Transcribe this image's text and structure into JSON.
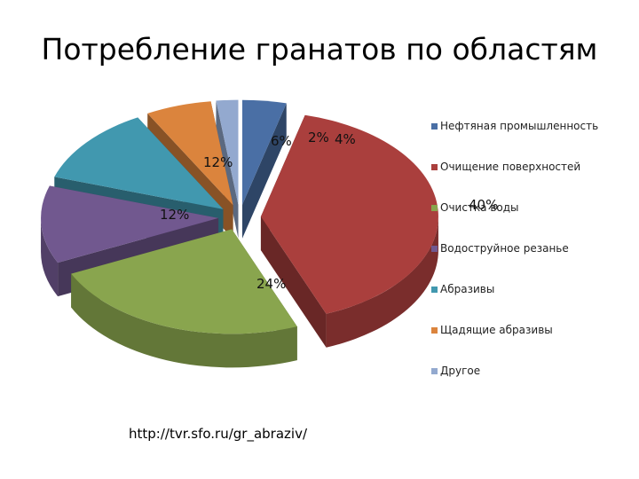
{
  "title": "Потребление гранатов по областям",
  "source": "http://tvr.sfo.ru/gr_abraziv/",
  "chart_data": {
    "type": "pie",
    "style": "3d-exploded",
    "legend_position": "right",
    "slices": [
      {
        "label": "Нефтяная промышленность",
        "value": 4,
        "display": "4%",
        "color": "#4a6fa5"
      },
      {
        "label": "Очищение поверхностей",
        "value": 40,
        "display": "40%",
        "color": "#aa3f3d"
      },
      {
        "label": "Очистка воды",
        "value": 24,
        "display": "24%",
        "color": "#89a54e"
      },
      {
        "label": "Водоструйное резанье",
        "value": 12,
        "display": "12%",
        "color": "#71588f"
      },
      {
        "label": "Абразивы",
        "value": 12,
        "display": "12%",
        "color": "#4198af"
      },
      {
        "label": "Щадящие абразивы",
        "value": 6,
        "display": "6%",
        "color": "#db843d"
      },
      {
        "label": "Другое",
        "value": 2,
        "display": "2%",
        "color": "#93a9cf"
      }
    ]
  }
}
